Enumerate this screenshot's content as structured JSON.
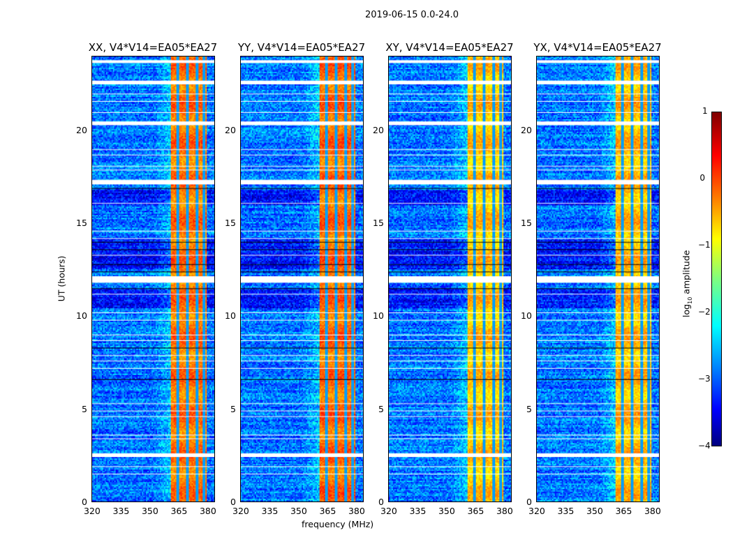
{
  "chart_data": {
    "type": "heatmap",
    "title": "2019-06-15 0.0-24.0",
    "xlabel": "frequency (MHz)",
    "ylabel": "UT (hours)",
    "xlim": [
      320,
      384
    ],
    "ylim": [
      0,
      24
    ],
    "xticks": [
      "320",
      "335",
      "350",
      "365",
      "380"
    ],
    "yticks": [
      "0",
      "5",
      "10",
      "15",
      "20"
    ],
    "colorbar": {
      "label": "log10 amplitude",
      "label_main": "log",
      "label_sub": "10",
      "label_rest": " amplitude",
      "range": [
        -4,
        1
      ],
      "ticks": [
        "1",
        "0",
        "−1",
        "−2",
        "−3",
        "−4"
      ],
      "colormap": "jet"
    },
    "panels": [
      {
        "title": "XX, V4*V14=EA05*EA27",
        "band_level": -0.2
      },
      {
        "title": "YY, V4*V14=EA05*EA27",
        "band_level": -0.15
      },
      {
        "title": "XY, V4*V14=EA05*EA27",
        "band_level": -0.6
      },
      {
        "title": "YX, V4*V14=EA05*EA27",
        "band_level": -0.55
      }
    ],
    "background_level": -2.8,
    "bright_band_mhz": [
      360.5,
      380
    ],
    "band_gaps_mhz": [
      364.5,
      369.5,
      374.5,
      378.3
    ],
    "flagged_hours": [
      [
        23.65,
        23.8
      ],
      [
        22.5,
        22.7
      ],
      [
        20.3,
        20.5
      ],
      [
        17.1,
        17.35
      ],
      [
        11.8,
        12.15
      ],
      [
        2.4,
        2.6
      ]
    ],
    "thin_flag_hours": [
      22.0,
      21.6,
      21.0,
      19.0,
      18.7,
      18.1,
      17.9,
      16.1,
      14.6,
      14.2,
      13.3,
      11.2,
      10.2,
      9.8,
      9.0,
      8.7,
      7.9,
      7.6,
      7.2,
      6.6,
      5.3,
      4.9,
      4.6,
      3.6,
      3.4,
      1.9,
      1.5
    ],
    "dark_hours": [
      [
        12.6,
        14.2
      ],
      [
        16.0,
        16.8
      ],
      [
        10.5,
        11.5
      ]
    ]
  }
}
